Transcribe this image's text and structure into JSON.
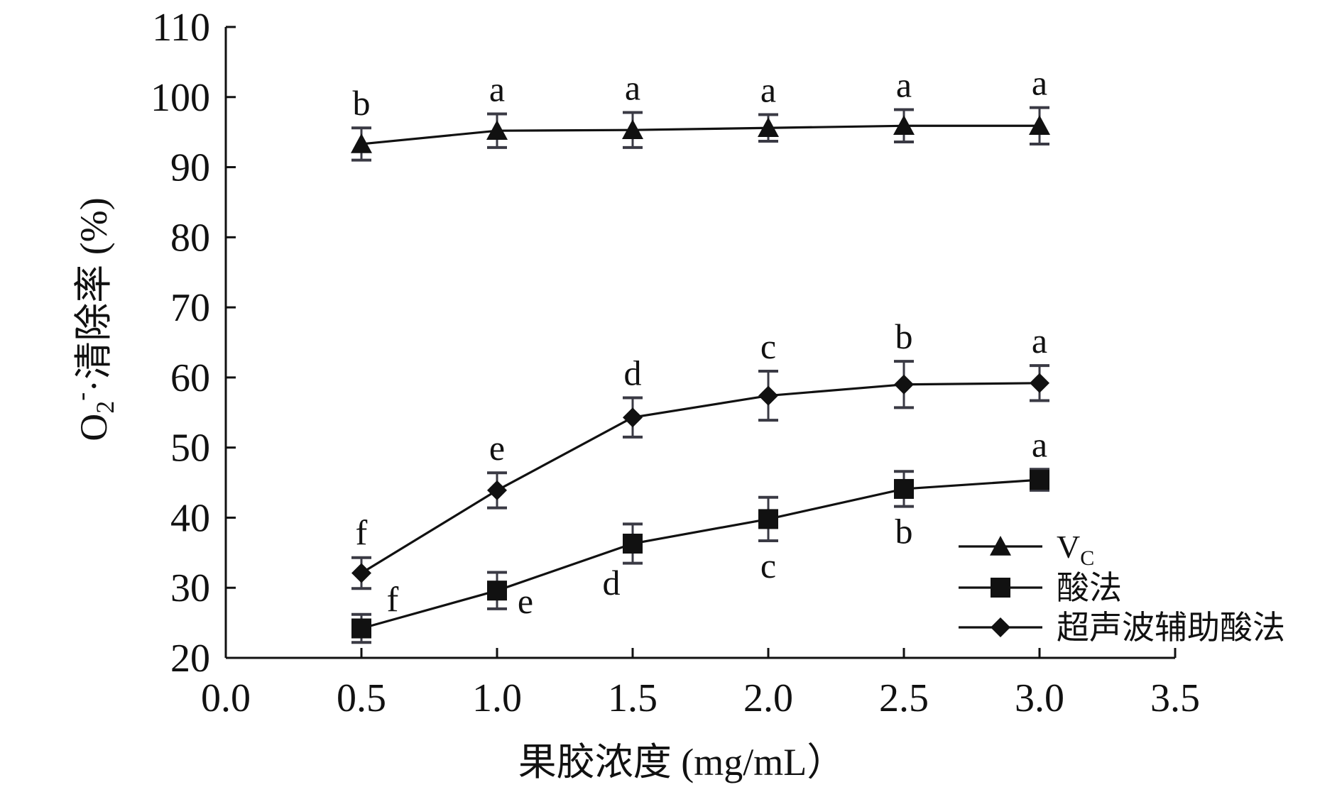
{
  "chart_data": {
    "type": "line",
    "xlabel": "果胶浓度 (mg/mL）",
    "ylabel": {
      "main": "O",
      "sub": "2",
      "sup": "-",
      "rest": "·清除率 (%)"
    },
    "xlim": [
      0.0,
      3.5
    ],
    "ylim": [
      20,
      110
    ],
    "x_ticks": [
      "0.0",
      "0.5",
      "1.0",
      "1.5",
      "2.0",
      "2.5",
      "3.0",
      "3.5"
    ],
    "y_ticks": [
      "20",
      "30",
      "40",
      "50",
      "60",
      "70",
      "80",
      "90",
      "100",
      "110"
    ],
    "grid": false,
    "legend_position": "bottom-right",
    "series": [
      {
        "name": "V",
        "name_sub": "C",
        "marker": "triangle",
        "x": [
          0.5,
          1.0,
          1.5,
          2.0,
          2.5,
          3.0
        ],
        "y": [
          93.3,
          95.2,
          95.3,
          95.6,
          95.9,
          95.9
        ],
        "error": [
          2.3,
          2.4,
          2.5,
          1.9,
          2.3,
          2.6
        ],
        "labels": [
          "b",
          "a",
          "a",
          "a",
          "a",
          "a"
        ],
        "label_pos": [
          "above",
          "above",
          "above",
          "above",
          "above",
          "above"
        ]
      },
      {
        "name": "酸法",
        "marker": "square",
        "x": [
          0.5,
          1.0,
          1.5,
          2.0,
          2.5,
          3.0
        ],
        "y": [
          24.2,
          29.6,
          36.3,
          39.8,
          44.1,
          45.4
        ],
        "error": [
          2.0,
          2.6,
          2.8,
          3.1,
          2.5,
          1.5
        ],
        "labels": [
          "f",
          "e",
          "d",
          "c",
          "b",
          "a"
        ],
        "label_pos": [
          "upper-right",
          "lower-right",
          "lower-left",
          "below",
          "below",
          "above"
        ]
      },
      {
        "name": "超声波辅助酸法",
        "marker": "diamond",
        "x": [
          0.5,
          1.0,
          1.5,
          2.0,
          2.5,
          3.0
        ],
        "y": [
          32.1,
          43.9,
          54.3,
          57.4,
          59.0,
          59.2
        ],
        "error": [
          2.2,
          2.5,
          2.8,
          3.5,
          3.3,
          2.5
        ],
        "labels": [
          "f",
          "e",
          "d",
          "c",
          "b",
          "a"
        ],
        "label_pos": [
          "above",
          "above",
          "above",
          "above",
          "above",
          "above"
        ]
      }
    ]
  }
}
